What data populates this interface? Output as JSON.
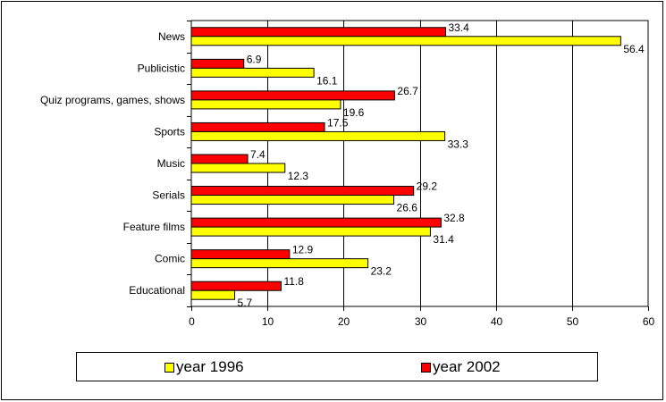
{
  "chart_data": {
    "type": "bar",
    "orientation": "horizontal",
    "categories": [
      "News",
      "Publicistic",
      "Quiz programs, games, shows",
      "Sports",
      "Music",
      "Serials",
      "Feature films",
      "Comic",
      "Educational"
    ],
    "series": [
      {
        "name": "year 2002",
        "color": "#ff0000",
        "values": [
          33.4,
          6.9,
          26.7,
          17.5,
          7.4,
          29.2,
          32.8,
          12.9,
          11.8
        ]
      },
      {
        "name": "year 1996",
        "color": "#ffff00",
        "values": [
          56.4,
          16.1,
          19.6,
          33.3,
          12.3,
          26.6,
          31.4,
          23.2,
          5.7
        ]
      }
    ],
    "xlim": [
      0,
      60
    ],
    "xticks": [
      "0",
      "10",
      "20",
      "30",
      "40",
      "50",
      "60"
    ],
    "grid": "vertical",
    "legend": {
      "position": "bottom",
      "entries": [
        {
          "label": "year 1996",
          "color": "#ffff00"
        },
        {
          "label": "year 2002",
          "color": "#ff0000"
        }
      ]
    }
  }
}
